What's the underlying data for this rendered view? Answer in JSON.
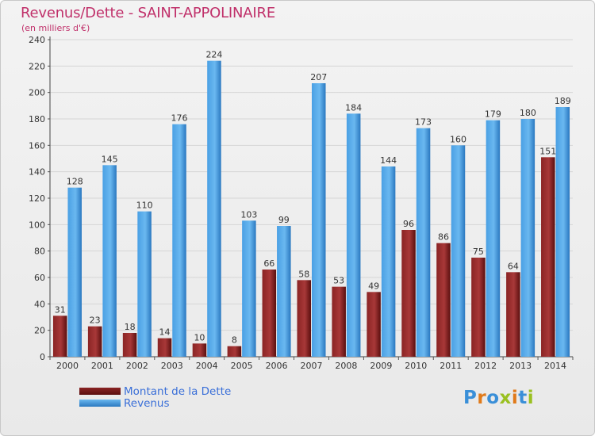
{
  "header": {
    "title": "Revenus/Dette - SAINT-APPOLINAIRE",
    "subtitle": "(en milliers d'€)"
  },
  "logo": {
    "text": "Proxiti",
    "letters": [
      "P",
      "r",
      "o",
      "x",
      "i",
      "t",
      "i"
    ],
    "colors": [
      "#3a8fd8",
      "#e07a1a",
      "#3a8fd8",
      "#9ac020",
      "#e07a1a",
      "#3a8fd8",
      "#9ac020"
    ]
  },
  "colors": {
    "debt": "#7a1a1a",
    "debt_light": "#a83838",
    "revenue": "#3a90d8",
    "revenue_light": "#6ab8f0",
    "axis_text": "#333333",
    "grid": "#d6d6d6"
  },
  "chart_data": {
    "type": "bar",
    "categories": [
      "2000",
      "2001",
      "2002",
      "2003",
      "2004",
      "2005",
      "2006",
      "2007",
      "2008",
      "2009",
      "2010",
      "2011",
      "2012",
      "2013",
      "2014"
    ],
    "series": [
      {
        "name": "Montant de la Dette",
        "values": [
          31,
          23,
          18,
          14,
          10,
          8,
          66,
          58,
          53,
          49,
          96,
          86,
          75,
          64,
          151
        ]
      },
      {
        "name": "Revenus",
        "values": [
          128,
          145,
          110,
          176,
          224,
          103,
          99,
          207,
          184,
          144,
          173,
          160,
          179,
          180,
          189
        ]
      }
    ],
    "ylim": [
      0,
      240
    ],
    "yticks": [
      0,
      20,
      40,
      60,
      80,
      100,
      120,
      140,
      160,
      180,
      200,
      220,
      240
    ],
    "grid": true,
    "legend": "bottom-left"
  }
}
